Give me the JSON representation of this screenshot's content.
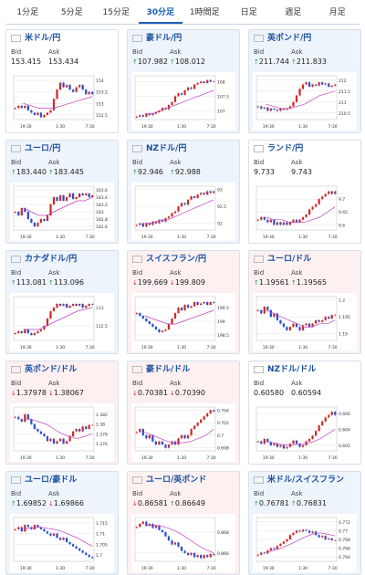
{
  "tabs": [
    {
      "label": "1分足",
      "active": false
    },
    {
      "label": "5分足",
      "active": false
    },
    {
      "label": "15分足",
      "active": false
    },
    {
      "label": "30分足",
      "active": true
    },
    {
      "label": "1時間足",
      "active": false
    },
    {
      "label": "日足",
      "active": false
    },
    {
      "label": "週足",
      "active": false
    },
    {
      "label": "月足",
      "active": false
    }
  ],
  "labels": {
    "bid": "Bid",
    "ask": "Ask"
  },
  "colors": {
    "up": "#2a9a3a",
    "down": "#d02a2a",
    "candle_up": "#d02a2a",
    "candle_down": "#2a4fcf",
    "ma": "#c040c0"
  },
  "cards": [
    {
      "name": "米ドル/円",
      "flag": "us-flag-icon",
      "trend": "flat",
      "bid": "153.415",
      "ask": "153.434",
      "bid_dir": "",
      "ask_dir": "",
      "chart_data": {
        "type": "candlestick",
        "x_ticks": [
          "19:30",
          "1:30",
          "7:30"
        ],
        "y_ticks": [
          "154",
          "153.5",
          "153",
          "152.5"
        ],
        "ylim": [
          152.3,
          154.2
        ],
        "closes": [
          152.8,
          152.9,
          152.8,
          152.9,
          152.7,
          152.6,
          152.5,
          152.6,
          152.4,
          152.5,
          152.6,
          152.7,
          153.2,
          153.6,
          153.9,
          153.7,
          153.8,
          153.6,
          153.5,
          153.7,
          153.8,
          153.6,
          153.4,
          153.5,
          153.4
        ],
        "ma": [
          153.0,
          152.9,
          152.8,
          152.8,
          152.8,
          152.9,
          153.0,
          153.1,
          153.2,
          153.3
        ]
      }
    },
    {
      "name": "豪ドル/円",
      "flag": "au-flag-icon",
      "trend": "up",
      "bid": "107.982",
      "ask": "108.012",
      "bid_dir": "up",
      "ask_dir": "up",
      "chart_data": {
        "type": "candlestick",
        "x_ticks": [
          "19:30",
          "1:30",
          "7:30"
        ],
        "y_ticks": [
          "108",
          "107.5",
          "107"
        ],
        "ylim": [
          106.7,
          108.2
        ],
        "closes": [
          106.8,
          106.85,
          106.8,
          106.9,
          106.85,
          106.9,
          106.95,
          107.0,
          107.1,
          107.05,
          107.2,
          107.3,
          107.5,
          107.6,
          107.55,
          107.7,
          107.8,
          107.75,
          107.9,
          107.95,
          108.0,
          107.95,
          108.05,
          108.0,
          108.0
        ],
        "ma": [
          106.9,
          106.9,
          107.0,
          107.1,
          107.2,
          107.3,
          107.4,
          107.5,
          107.6,
          107.7
        ]
      }
    },
    {
      "name": "英ポンド/円",
      "flag": "gb-flag-icon",
      "trend": "up",
      "bid": "211.744",
      "ask": "211.833",
      "bid_dir": "up",
      "ask_dir": "up",
      "chart_data": {
        "type": "candlestick",
        "x_ticks": [
          "19:30",
          "1:30",
          "7:30"
        ],
        "y_ticks": [
          "212",
          "211.5",
          "211",
          "210.5"
        ],
        "ylim": [
          210.2,
          212.2
        ],
        "closes": [
          210.8,
          210.7,
          210.75,
          210.6,
          210.7,
          210.65,
          210.6,
          210.7,
          210.65,
          210.7,
          210.8,
          211.0,
          211.3,
          211.6,
          211.8,
          211.9,
          211.7,
          211.8,
          211.75,
          211.9,
          211.8,
          211.85,
          211.7,
          211.75,
          211.8
        ],
        "ma": [
          210.9,
          210.8,
          210.7,
          210.7,
          210.8,
          210.9,
          211.1,
          211.3,
          211.4,
          211.5
        ]
      }
    },
    {
      "name": "ユーロ/円",
      "flag": "eu-flag-icon",
      "trend": "up",
      "bid": "183.440",
      "ask": "183.445",
      "bid_dir": "up",
      "ask_dir": "up",
      "chart_data": {
        "type": "candlestick",
        "x_ticks": [
          "19:30",
          "1:30",
          "7:30"
        ],
        "y_ticks": [
          "183.6",
          "183.4",
          "183.2",
          "183",
          "182.8",
          "182.6"
        ],
        "ylim": [
          182.5,
          183.7
        ],
        "closes": [
          183.0,
          182.9,
          183.1,
          183.0,
          182.8,
          182.7,
          182.6,
          182.7,
          182.8,
          182.75,
          182.9,
          183.2,
          183.4,
          183.3,
          183.45,
          183.3,
          183.4,
          183.5,
          183.35,
          183.4,
          183.5,
          183.45,
          183.5,
          183.4,
          183.45
        ],
        "ma": [
          183.1,
          183.0,
          182.9,
          182.9,
          183.0,
          183.1,
          183.2,
          183.3,
          183.3,
          183.4
        ]
      }
    },
    {
      "name": "NZドル/円",
      "flag": "nz-flag-icon",
      "trend": "up",
      "bid": "92.946",
      "ask": "92.988",
      "bid_dir": "up",
      "ask_dir": "up",
      "chart_data": {
        "type": "candlestick",
        "x_ticks": [
          "19:30",
          "1:30",
          "7:30"
        ],
        "y_ticks": [
          "93",
          "92.5",
          "92"
        ],
        "ylim": [
          91.8,
          93.1
        ],
        "closes": [
          91.95,
          92.0,
          91.9,
          92.0,
          91.95,
          92.05,
          92.0,
          92.1,
          92.05,
          92.15,
          92.2,
          92.3,
          92.35,
          92.5,
          92.6,
          92.55,
          92.7,
          92.8,
          92.75,
          92.85,
          92.9,
          92.85,
          92.95,
          92.9,
          92.95
        ],
        "ma": [
          92.0,
          92.0,
          92.1,
          92.1,
          92.2,
          92.3,
          92.4,
          92.5,
          92.6,
          92.7
        ]
      }
    },
    {
      "name": "ランド/円",
      "flag": "za-flag-icon",
      "trend": "flat",
      "bid": "9.733",
      "ask": "9.743",
      "bid_dir": "",
      "ask_dir": "",
      "chart_data": {
        "type": "candlestick",
        "x_ticks": [
          "19:30",
          "1:30",
          "7:30"
        ],
        "y_ticks": [
          "9.7",
          "9.65",
          "9.6"
        ],
        "ylim": [
          9.58,
          9.75
        ],
        "closes": [
          9.62,
          9.63,
          9.62,
          9.61,
          9.62,
          9.6,
          9.61,
          9.6,
          9.61,
          9.6,
          9.61,
          9.62,
          9.61,
          9.62,
          9.63,
          9.64,
          9.66,
          9.67,
          9.68,
          9.7,
          9.71,
          9.72,
          9.73,
          9.72,
          9.73
        ],
        "ma": [
          9.63,
          9.62,
          9.62,
          9.61,
          9.61,
          9.61,
          9.62,
          9.63,
          9.65,
          9.67
        ]
      }
    },
    {
      "name": "カナダドル/円",
      "flag": "ca-flag-icon",
      "trend": "up",
      "bid": "113.081",
      "ask": "113.096",
      "bid_dir": "up",
      "ask_dir": "up",
      "chart_data": {
        "type": "candlestick",
        "x_ticks": [
          "19:30",
          "1:30",
          "7:30"
        ],
        "y_ticks": [
          "113",
          "112.5"
        ],
        "ylim": [
          112.1,
          113.3
        ],
        "closes": [
          112.3,
          112.35,
          112.3,
          112.4,
          112.3,
          112.25,
          112.3,
          112.35,
          112.4,
          112.5,
          112.7,
          112.9,
          113.0,
          113.1,
          113.05,
          113.1,
          113.0,
          113.05,
          113.1,
          113.05,
          113.1,
          113.0,
          113.05,
          113.1,
          113.08
        ],
        "ma": [
          112.4,
          112.4,
          112.4,
          112.5,
          112.6,
          112.7,
          112.8,
          112.9,
          112.95,
          113.0
        ]
      }
    },
    {
      "name": "スイスフラン/円",
      "flag": "ch-flag-icon",
      "trend": "down",
      "bid": "199.669",
      "ask": "199.809",
      "bid_dir": "down",
      "ask_dir": "down",
      "chart_data": {
        "type": "candlestick",
        "x_ticks": [
          "19:30",
          "1:30",
          "7:30"
        ],
        "y_ticks": [
          "199.5",
          "199",
          "198.5"
        ],
        "ylim": [
          198.3,
          199.9
        ],
        "closes": [
          199.3,
          199.2,
          199.1,
          199.0,
          198.9,
          198.8,
          198.7,
          198.6,
          198.65,
          198.7,
          198.9,
          199.1,
          199.3,
          199.5,
          199.4,
          199.6,
          199.5,
          199.55,
          199.7,
          199.6,
          199.65,
          199.7,
          199.6,
          199.7,
          199.67
        ],
        "ma": [
          199.2,
          199.1,
          199.0,
          198.9,
          198.9,
          199.0,
          199.1,
          199.2,
          199.3,
          199.4
        ]
      }
    },
    {
      "name": "ユーロ/ドル",
      "flag": "eu-us-flag-icon",
      "trend": "down",
      "bid": "1.19561",
      "ask": "1.19565",
      "bid_dir": "up",
      "ask_dir": "up",
      "chart_data": {
        "type": "candlestick",
        "x_ticks": [
          "19:30",
          "1:30",
          "7:30"
        ],
        "y_ticks": [
          "1.2",
          "1.195",
          "1.19"
        ],
        "ylim": [
          1.188,
          1.201
        ],
        "closes": [
          1.197,
          1.196,
          1.198,
          1.197,
          1.195,
          1.196,
          1.194,
          1.193,
          1.192,
          1.191,
          1.192,
          1.193,
          1.192,
          1.191,
          1.1925,
          1.193,
          1.192,
          1.193,
          1.194,
          1.1935,
          1.194,
          1.195,
          1.1945,
          1.1955,
          1.1956
        ],
        "ma": [
          1.197,
          1.196,
          1.195,
          1.194,
          1.193,
          1.192,
          1.192,
          1.193,
          1.193,
          1.194
        ]
      }
    },
    {
      "name": "英ポンド/ドル",
      "flag": "gb-us-flag-icon",
      "trend": "down",
      "bid": "1.37978",
      "ask": "1.38067",
      "bid_dir": "down",
      "ask_dir": "down",
      "chart_data": {
        "type": "candlestick",
        "x_ticks": [
          "19:30",
          "1:30",
          "7:30"
        ],
        "y_ticks": [
          "1.382",
          "1.38",
          "1.378",
          "1.376"
        ],
        "ylim": [
          1.3745,
          1.3835
        ],
        "closes": [
          1.3815,
          1.381,
          1.3805,
          1.382,
          1.381,
          1.38,
          1.379,
          1.3785,
          1.378,
          1.3775,
          1.3765,
          1.377,
          1.376,
          1.3765,
          1.377,
          1.376,
          1.3765,
          1.3775,
          1.3785,
          1.379,
          1.3785,
          1.3795,
          1.379,
          1.3798,
          1.3798
        ],
        "ma": [
          1.381,
          1.381,
          1.3805,
          1.38,
          1.379,
          1.378,
          1.3775,
          1.377,
          1.3775,
          1.378
        ]
      }
    },
    {
      "name": "豪ドル/ドル",
      "flag": "au-us-flag-icon",
      "trend": "down",
      "bid": "0.70381",
      "ask": "0.70390",
      "bid_dir": "down",
      "ask_dir": "down",
      "chart_data": {
        "type": "candlestick",
        "x_ticks": [
          "19:30",
          "1:30",
          "7:30"
        ],
        "y_ticks": [
          "0.704",
          "0.702",
          "0.7",
          "0.698"
        ],
        "ylim": [
          0.6975,
          0.7045
        ],
        "closes": [
          0.7005,
          0.701,
          0.7,
          0.6995,
          0.7,
          0.699,
          0.6985,
          0.699,
          0.6985,
          0.698,
          0.6985,
          0.699,
          0.6985,
          0.6995,
          0.7,
          0.6995,
          0.7,
          0.701,
          0.7015,
          0.702,
          0.7025,
          0.703,
          0.7035,
          0.704,
          0.7038
        ],
        "ma": [
          0.7005,
          0.7,
          0.6995,
          0.699,
          0.6988,
          0.6988,
          0.699,
          0.6995,
          0.7,
          0.701
        ]
      }
    },
    {
      "name": "NZドル/ドル",
      "flag": "nz-us-flag-icon",
      "trend": "flat",
      "bid": "0.60580",
      "ask": "0.60594",
      "bid_dir": "",
      "ask_dir": "",
      "chart_data": {
        "type": "candlestick",
        "x_ticks": [
          "19:30",
          "1:30",
          "7:30"
        ],
        "y_ticks": [
          "0.606",
          "0.604",
          "0.602"
        ],
        "ylim": [
          0.6013,
          0.6068
        ],
        "closes": [
          0.6025,
          0.6022,
          0.6028,
          0.6024,
          0.602,
          0.6022,
          0.6018,
          0.602,
          0.6016,
          0.6018,
          0.6022,
          0.6026,
          0.6022,
          0.6018,
          0.602,
          0.6025,
          0.6028,
          0.6032,
          0.6038,
          0.6045,
          0.605,
          0.6055,
          0.6058,
          0.6062,
          0.6058
        ],
        "ma": [
          0.6025,
          0.6023,
          0.6021,
          0.602,
          0.6021,
          0.6022,
          0.6024,
          0.6028,
          0.6034,
          0.604
        ]
      }
    },
    {
      "name": "ユーロ/豪ドル",
      "flag": "eu-au-flag-icon",
      "trend": "up",
      "bid": "1.69852",
      "ask": "1.69866",
      "bid_dir": "up",
      "ask_dir": "down",
      "chart_data": {
        "type": "candlestick",
        "x_ticks": [
          "19:30",
          "1:30",
          "7:30"
        ],
        "y_ticks": [
          "1.715",
          "1.71",
          "1.705",
          "1.7"
        ],
        "ylim": [
          1.697,
          1.7175
        ],
        "closes": [
          1.712,
          1.713,
          1.711,
          1.714,
          1.713,
          1.712,
          1.714,
          1.713,
          1.712,
          1.711,
          1.71,
          1.709,
          1.71,
          1.708,
          1.707,
          1.708,
          1.706,
          1.705,
          1.704,
          1.703,
          1.702,
          1.701,
          1.7,
          1.699,
          1.6985
        ],
        "ma": [
          1.712,
          1.7125,
          1.713,
          1.7125,
          1.712,
          1.711,
          1.7095,
          1.708,
          1.706,
          1.704
        ]
      }
    },
    {
      "name": "ユーロ/英ポンド",
      "flag": "eu-gb-flag-icon",
      "trend": "down",
      "bid": "0.86581",
      "ask": "0.86649",
      "bid_dir": "down",
      "ask_dir": "up",
      "chart_data": {
        "type": "candlestick",
        "x_ticks": [
          "19:30",
          "1:30",
          "7:30"
        ],
        "y_ticks": [
          "0.868",
          "0.866"
        ],
        "ylim": [
          0.8652,
          0.8694
        ],
        "closes": [
          0.8685,
          0.8688,
          0.869,
          0.8686,
          0.8688,
          0.8684,
          0.8686,
          0.8682,
          0.868,
          0.8676,
          0.8672,
          0.8668,
          0.867,
          0.8666,
          0.8662,
          0.866,
          0.8658,
          0.866,
          0.8656,
          0.8658,
          0.8655,
          0.8658,
          0.8656,
          0.8659,
          0.8658
        ],
        "ma": [
          0.8686,
          0.8687,
          0.8686,
          0.8684,
          0.8681,
          0.8677,
          0.8672,
          0.8667,
          0.8663,
          0.866
        ]
      }
    },
    {
      "name": "米ドル/スイスフラン",
      "flag": "us-ch-flag-icon",
      "trend": "up",
      "bid": "0.76781",
      "ask": "0.76831",
      "bid_dir": "up",
      "ask_dir": "up",
      "chart_data": {
        "type": "candlestick",
        "x_ticks": [
          "19:30",
          "1:30",
          "7:30"
        ],
        "y_ticks": [
          "0.772",
          "0.77",
          "0.768",
          "0.766",
          "0.764"
        ],
        "ylim": [
          0.763,
          0.773
        ],
        "closes": [
          0.7645,
          0.765,
          0.7648,
          0.7655,
          0.766,
          0.7658,
          0.7665,
          0.767,
          0.7675,
          0.768,
          0.769,
          0.7695,
          0.77,
          0.7698,
          0.7702,
          0.77,
          0.7695,
          0.7698,
          0.769,
          0.7685,
          0.7688,
          0.768,
          0.7682,
          0.7678,
          0.7678
        ],
        "ma": [
          0.765,
          0.7655,
          0.766,
          0.7668,
          0.7676,
          0.7685,
          0.7692,
          0.7695,
          0.7692,
          0.7688
        ]
      }
    }
  ]
}
